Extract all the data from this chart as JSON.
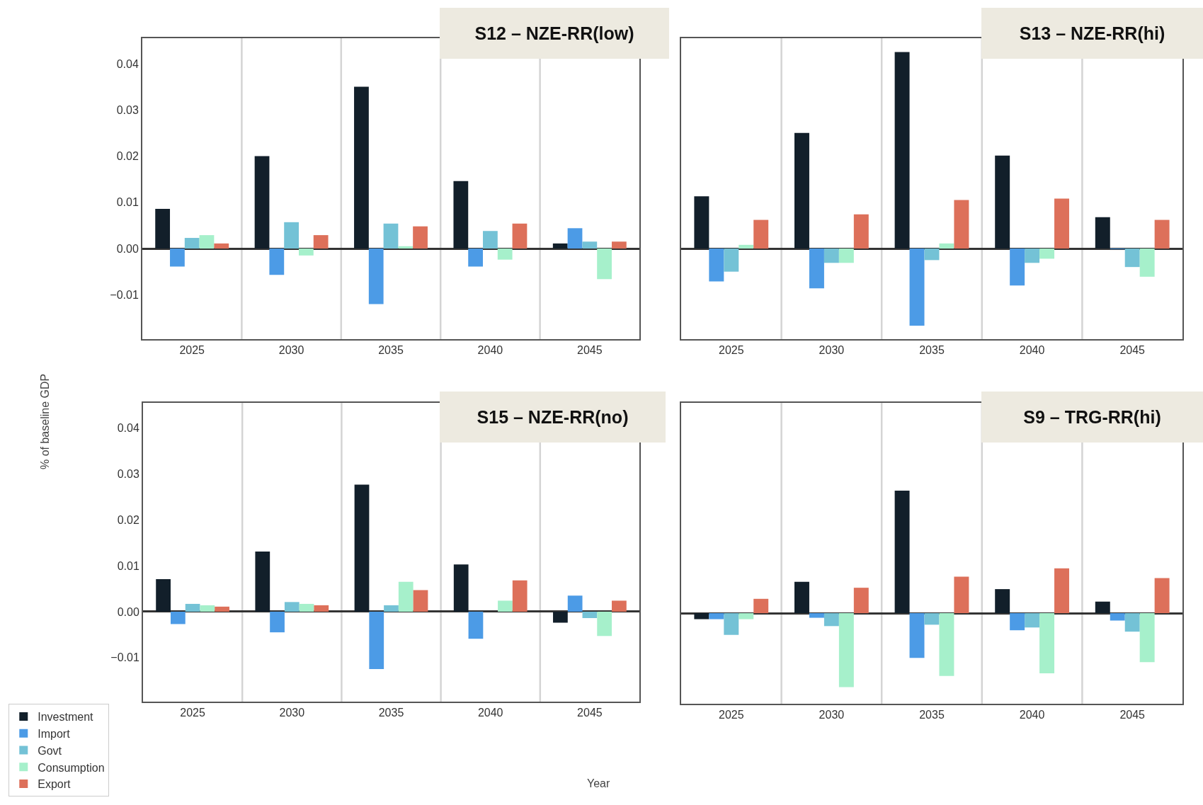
{
  "chart_data": [
    {
      "type": "bar",
      "title": "S12 – NZE-RR(low)",
      "categories": [
        "2025",
        "2030",
        "2035",
        "2040",
        "2045"
      ],
      "ylim": [
        -0.0196,
        0.0455
      ],
      "yticks": [
        {
          "value": -0.01,
          "label": "−0.01"
        },
        "0.00",
        0.01,
        0.02,
        0.03,
        0.04
      ],
      "grid": "x",
      "legend": false,
      "series": [
        {
          "color": "#121f2a",
          "values": [
            0.0086,
            0.02,
            0.035,
            0.0146,
            0.0011
          ]
        },
        {
          "color": "#4c9be6",
          "values": [
            -0.0039,
            -0.0057,
            -0.012,
            -0.0039,
            0.0044
          ]
        },
        {
          "color": "#74c2d6",
          "values": [
            0.0023,
            0.0057,
            0.0054,
            0.0038,
            0.0015
          ]
        },
        {
          "color": "#a6f0cb",
          "values": [
            0.0029,
            -0.0015,
            0.0005,
            -0.0024,
            -0.0066
          ]
        },
        {
          "color": "#dd705a",
          "values": [
            0.0011,
            0.0029,
            0.0048,
            0.0054,
            0.0015
          ]
        }
      ]
    },
    {
      "type": "bar",
      "title": "S13 – NZE-RR(hi)",
      "categories": [
        "2025",
        "2030",
        "2035",
        "2040",
        "2045"
      ],
      "ylim": [
        -0.0196,
        0.0455
      ],
      "yticks": [
        -0.01,
        0,
        0.01,
        0.02,
        0.03,
        0.04
      ],
      "tick_labels": "x",
      "grid": "x",
      "legend": false,
      "series": [
        {
          "color": "#121f2a",
          "values": [
            0.0113,
            0.025,
            0.0425,
            0.0201,
            0.0068
          ]
        },
        {
          "color": "#4c9be6",
          "values": [
            -0.0071,
            -0.0086,
            -0.0167,
            -0.008,
            -0.0001
          ]
        },
        {
          "color": "#74c2d6",
          "values": [
            -0.005,
            -0.0031,
            -0.0025,
            -0.0031,
            -0.004
          ]
        },
        {
          "color": "#a6f0cb",
          "values": [
            0.0008,
            -0.0031,
            0.0011,
            -0.0022,
            -0.0061
          ]
        },
        {
          "color": "#dd705a",
          "values": [
            0.0062,
            0.0074,
            0.0105,
            0.0108,
            0.0062
          ]
        }
      ]
    },
    {
      "type": "bar",
      "title": "S15 – NZE-RR(no)",
      "xlabel": "Year",
      "ylabel": "% of baseline GDP",
      "categories": [
        "2025",
        "2030",
        "2035",
        "2040",
        "2045"
      ],
      "ylim": [
        -0.0196,
        0.0455
      ],
      "yticks": [
        {
          "value": -0.01,
          "label": "−0.01"
        },
        "0.00",
        0.01,
        0.02,
        0.03,
        0.04
      ],
      "grid": "x",
      "legend": "bottom left",
      "series": [
        {
          "name": "Investment",
          "color": "#121f2a",
          "values": [
            0.0071,
            0.0131,
            0.0277,
            0.0103,
            -0.0024
          ]
        },
        {
          "name": "Import",
          "color": "#4c9be6",
          "values": [
            -0.0027,
            -0.0045,
            -0.0125,
            -0.0059,
            0.0035
          ]
        },
        {
          "name": "Govt",
          "color": "#74c2d6",
          "values": [
            0.0017,
            0.0021,
            0.0014,
            null,
            -0.0014
          ]
        },
        {
          "name": "Consumption",
          "color": "#a6f0cb",
          "values": [
            0.0014,
            0.0017,
            0.0065,
            0.0024,
            -0.0053
          ]
        },
        {
          "name": "Export",
          "color": "#dd705a",
          "values": [
            0.0011,
            0.0014,
            0.0047,
            0.0068,
            0.0024
          ]
        }
      ]
    },
    {
      "type": "bar",
      "title": "S9 – TRG-RR(hi)",
      "categories": [
        "2025",
        "2030",
        "2035",
        "2040",
        "2045"
      ],
      "ylim": [
        -0.0196,
        0.0455
      ],
      "yticks": [
        -0.01,
        0,
        0.01,
        0.02,
        0.03,
        0.04
      ],
      "tick_labels": "x",
      "grid": "x",
      "legend": false,
      "series": [
        {
          "color": "#121f2a",
          "values": [
            -0.0013,
            0.0068,
            0.0265,
            0.0052,
            0.0025
          ]
        },
        {
          "color": "#4c9be6",
          "values": [
            -0.0013,
            -0.001,
            -0.0097,
            -0.0037,
            -0.0016
          ]
        },
        {
          "color": "#74c2d6",
          "values": [
            -0.0047,
            -0.0028,
            -0.0025,
            -0.0031,
            -0.004
          ]
        },
        {
          "color": "#a6f0cb",
          "values": [
            -0.0013,
            -0.016,
            -0.0136,
            -0.013,
            -0.0106
          ]
        },
        {
          "color": "#dd705a",
          "values": [
            0.0031,
            0.0055,
            0.0079,
            0.0097,
            0.0076
          ]
        }
      ]
    }
  ]
}
